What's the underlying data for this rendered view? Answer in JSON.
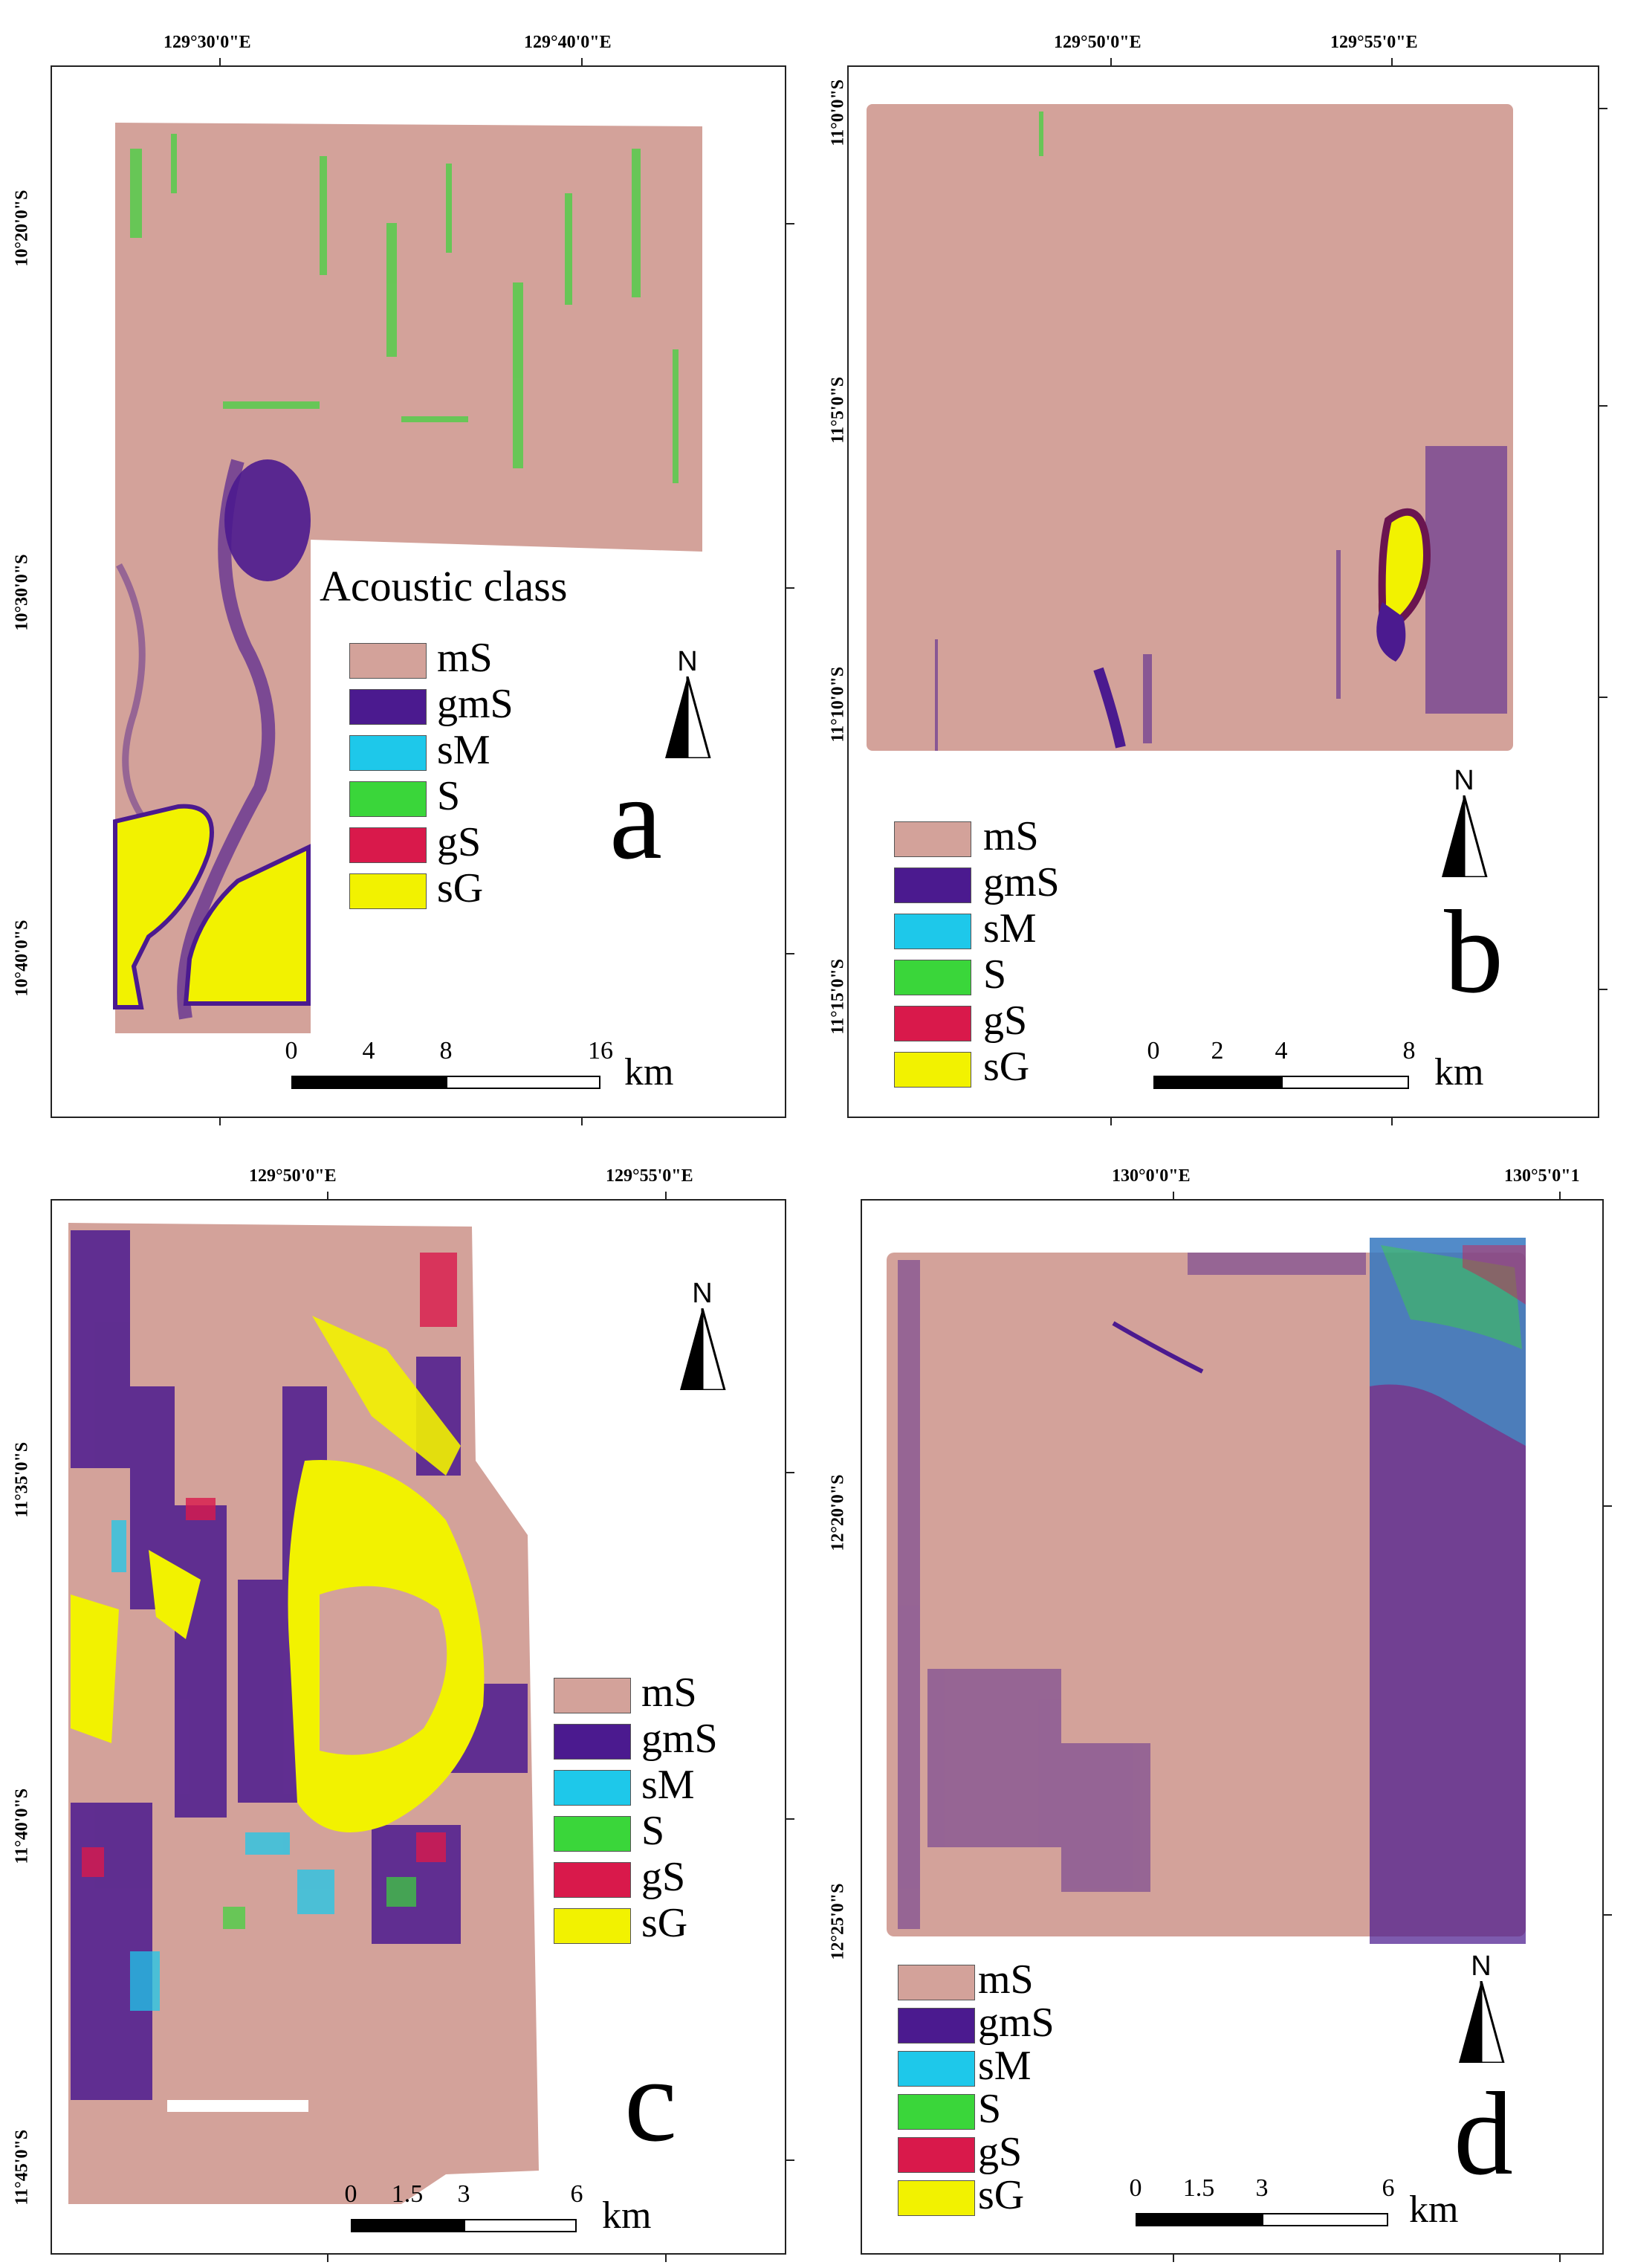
{
  "colors": {
    "mS": "#d3a29a",
    "gmS": "#4b1a8f",
    "sM": "#1ec8ea",
    "S": "#3ad63a",
    "gS": "#d9194b",
    "sG": "#f2f200",
    "frame": "#222222"
  },
  "legend_classes": [
    {
      "code": "mS",
      "color": "#d3a29a"
    },
    {
      "code": "gmS",
      "color": "#4b1a8f"
    },
    {
      "code": "sM",
      "color": "#1ec8ea"
    },
    {
      "code": "S",
      "color": "#3ad63a"
    },
    {
      "code": "gS",
      "color": "#d9194b"
    },
    {
      "code": "sG",
      "color": "#f2f200"
    }
  ],
  "panels": [
    {
      "letter": "a",
      "legend_title": "Acoustic class",
      "lon_labels": [
        "129°30'0\"E",
        "129°40'0\"E"
      ],
      "lat_labels": [
        "10°20'0\"S",
        "10°30'0\"S",
        "10°40'0\"S"
      ],
      "scale_numbers": [
        "0",
        "4",
        "8",
        "16"
      ],
      "scale_unit": "km",
      "north_label": "N"
    },
    {
      "letter": "b",
      "legend_title": "",
      "lon_labels": [
        "129°50'0\"E",
        "129°55'0\"E"
      ],
      "lat_labels": [
        "11°0'0\"S",
        "11°5'0\"S",
        "11°10'0\"S",
        "11°15'0\"S"
      ],
      "scale_numbers": [
        "0",
        "2",
        "4",
        "8"
      ],
      "scale_unit": "km",
      "north_label": "N"
    },
    {
      "letter": "c",
      "legend_title": "",
      "lon_labels": [
        "129°50'0\"E",
        "129°55'0\"E"
      ],
      "lat_labels": [
        "11°35'0\"S",
        "11°40'0\"S",
        "11°45'0\"S"
      ],
      "scale_numbers": [
        "0",
        "1.5",
        "3",
        "6"
      ],
      "scale_unit": "km",
      "north_label": "N"
    },
    {
      "letter": "d",
      "legend_title": "",
      "lon_labels": [
        "130°0'0\"E",
        "130°5'0\"1"
      ],
      "lat_labels": [
        "12°20'0\"S",
        "12°25'0\"S"
      ],
      "scale_numbers": [
        "0",
        "1.5",
        "3",
        "6"
      ],
      "scale_unit": "km",
      "north_label": "N"
    }
  ]
}
